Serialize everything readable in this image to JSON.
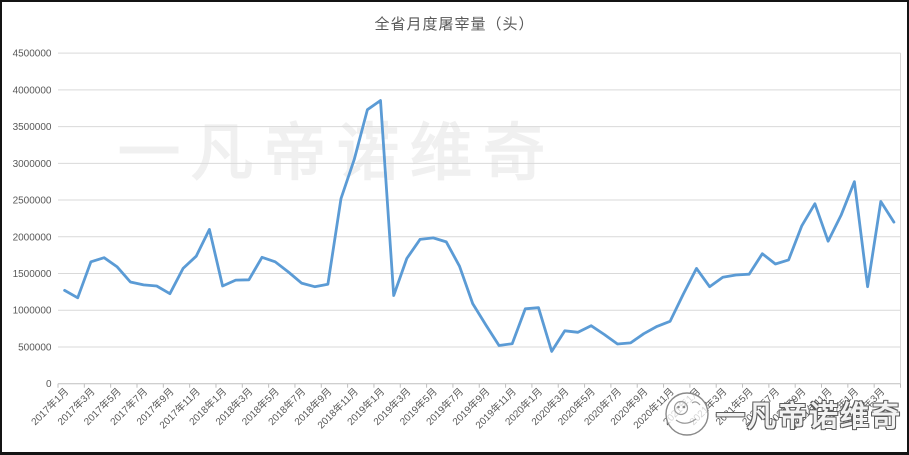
{
  "chart_data": {
    "type": "line",
    "title": "全省月度屠宰量（头）",
    "xlabel": "",
    "ylabel": "",
    "ylim": [
      0,
      4500000
    ],
    "y_ticks": [
      0,
      500000,
      1000000,
      1500000,
      2000000,
      2500000,
      3000000,
      3500000,
      4000000,
      4500000
    ],
    "x_tick_label_interval": 2,
    "grid": true,
    "legend_position": "none",
    "line_color": "#5b9bd5",
    "gridline_color": "#d9d9d9",
    "axis_color": "#bfbfbf",
    "tick_label_color": "#595959",
    "x": [
      "2017年1月",
      "2017年2月",
      "2017年3月",
      "2017年4月",
      "2017年5月",
      "2017年6月",
      "2017年7月",
      "2017年8月",
      "2017年9月",
      "2017年10月",
      "2017年11月",
      "2017年12月",
      "2018年1月",
      "2018年2月",
      "2018年3月",
      "2018年4月",
      "2018年5月",
      "2018年6月",
      "2018年7月",
      "2018年8月",
      "2018年9月",
      "2018年10月",
      "2018年11月",
      "2018年12月",
      "2019年1月",
      "2019年2月",
      "2019年3月",
      "2019年4月",
      "2019年5月",
      "2019年6月",
      "2019年7月",
      "2019年8月",
      "2019年9月",
      "2019年10月",
      "2019年11月",
      "2019年12月",
      "2020年1月",
      "2020年2月",
      "2020年3月",
      "2020年4月",
      "2020年5月",
      "2020年6月",
      "2020年7月",
      "2020年8月",
      "2020年9月",
      "2020年10月",
      "2020年11月",
      "2020年12月",
      "2021年1月",
      "2021年2月",
      "2021年3月",
      "2021年4月",
      "2021年5月",
      "2021年6月",
      "2021年7月",
      "2021年8月",
      "2021年9月",
      "2021年10月",
      "2021年11月",
      "2021年12月",
      "2022年1月",
      "2022年2月",
      "2022年3月",
      "2022年4月"
    ],
    "values": [
      1270000,
      1170000,
      1660000,
      1715000,
      1590000,
      1385000,
      1345000,
      1330000,
      1225000,
      1570000,
      1735000,
      2100000,
      1330000,
      1410000,
      1415000,
      1720000,
      1660000,
      1520000,
      1370000,
      1320000,
      1355000,
      2520000,
      3050000,
      3730000,
      3855000,
      1200000,
      1705000,
      1965000,
      1985000,
      1930000,
      1600000,
      1090000,
      800000,
      520000,
      545000,
      1020000,
      1035000,
      440000,
      720000,
      700000,
      790000,
      670000,
      540000,
      555000,
      680000,
      780000,
      850000,
      1220000,
      1570000,
      1320000,
      1450000,
      1480000,
      1490000,
      1770000,
      1630000,
      1685000,
      2150000,
      2450000,
      1940000,
      2300000,
      2750000,
      1320000,
      2480000,
      2200000
    ]
  },
  "watermarks": {
    "center": "一凡帝诺维奇",
    "bottom_right": "一凡帝诺维奇",
    "logo": "cartoon-face-badge"
  }
}
